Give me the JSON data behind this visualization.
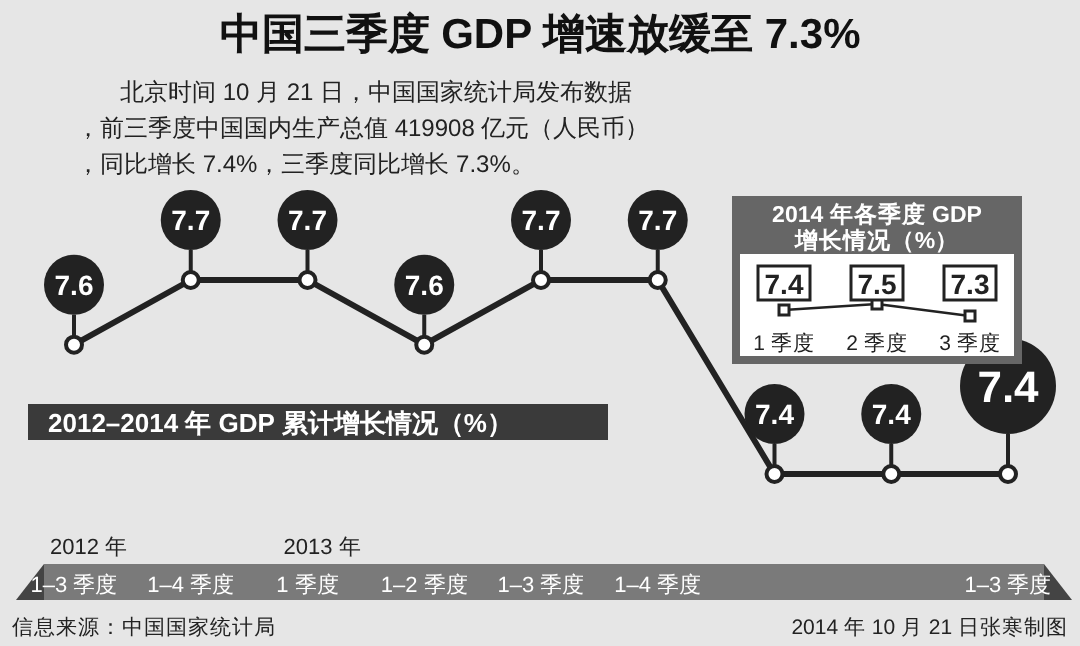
{
  "chart_data": [
    {
      "type": "line",
      "title": "中国三季度 GDP 增速放缓至 7.3%",
      "subtitle": "北京时间 10 月 21 日，中国国家统计局发布数据，前三季度中国国内生产总值 419908 亿元（人民币），同比增长 7.4%，三季度同比增长 7.3%。",
      "categories": [
        "1–3 季度",
        "1–4 季度",
        "1 季度",
        "1–2 季度",
        "1–3 季度",
        "1–4 季度",
        null,
        null,
        "1–3 季度"
      ],
      "values": [
        7.6,
        7.7,
        7.7,
        7.6,
        7.7,
        7.7,
        7.4,
        7.4,
        7.4
      ],
      "color": "#222222",
      "marker": "circle",
      "data_labels": true,
      "annotations": [
        "2012–2014 年 GDP 累计增长情况（%）",
        "信息来源：中国国家统计局",
        "2014 年 10 月 21 日张寒制图",
        "2012 年",
        "2013 年"
      ]
    },
    {
      "type": "line",
      "title": "2014 年各季度 GDP\n增长情况（%）",
      "categories": [
        "1 季度",
        "2 季度",
        "3 季度"
      ],
      "values": [
        7.4,
        7.5,
        7.3
      ],
      "color": "#222222",
      "marker": "square",
      "data_labels": true
    }
  ]
}
